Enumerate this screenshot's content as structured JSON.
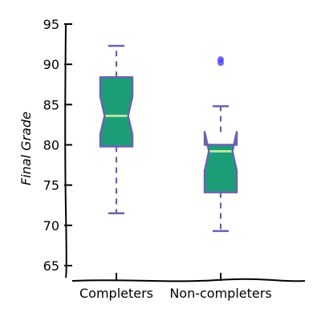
{
  "chart_data": {
    "type": "box",
    "title": "",
    "xlabel": "",
    "ylabel": "Final Grade",
    "ylim": [
      64.5,
      95
    ],
    "yticks": [
      65,
      70,
      75,
      80,
      85,
      90,
      95
    ],
    "categories": [
      "Completers",
      "Non-completers"
    ],
    "boxes": [
      {
        "category": "Completers",
        "whisker_low": 71.5,
        "q1": 79.8,
        "median": 83.6,
        "notch_low": 81.3,
        "notch_high": 86.0,
        "q3": 88.4,
        "whisker_high": 92.3,
        "outliers": []
      },
      {
        "category": "Non-completers",
        "whisker_low": 69.3,
        "q1": 74.1,
        "median": 79.2,
        "notch_low": 76.8,
        "notch_high": 81.6,
        "q3": 80.0,
        "whisker_high": 84.8,
        "outliers": [
          90.2,
          90.6
        ]
      }
    ],
    "colors": {
      "box_fill": "#1b9e77",
      "box_edge": "#6a62b0",
      "median": "#b8e6a0",
      "whisker": "#6a62b0",
      "outlier": "#3b3bf0"
    },
    "grid": false,
    "legend": "none"
  }
}
